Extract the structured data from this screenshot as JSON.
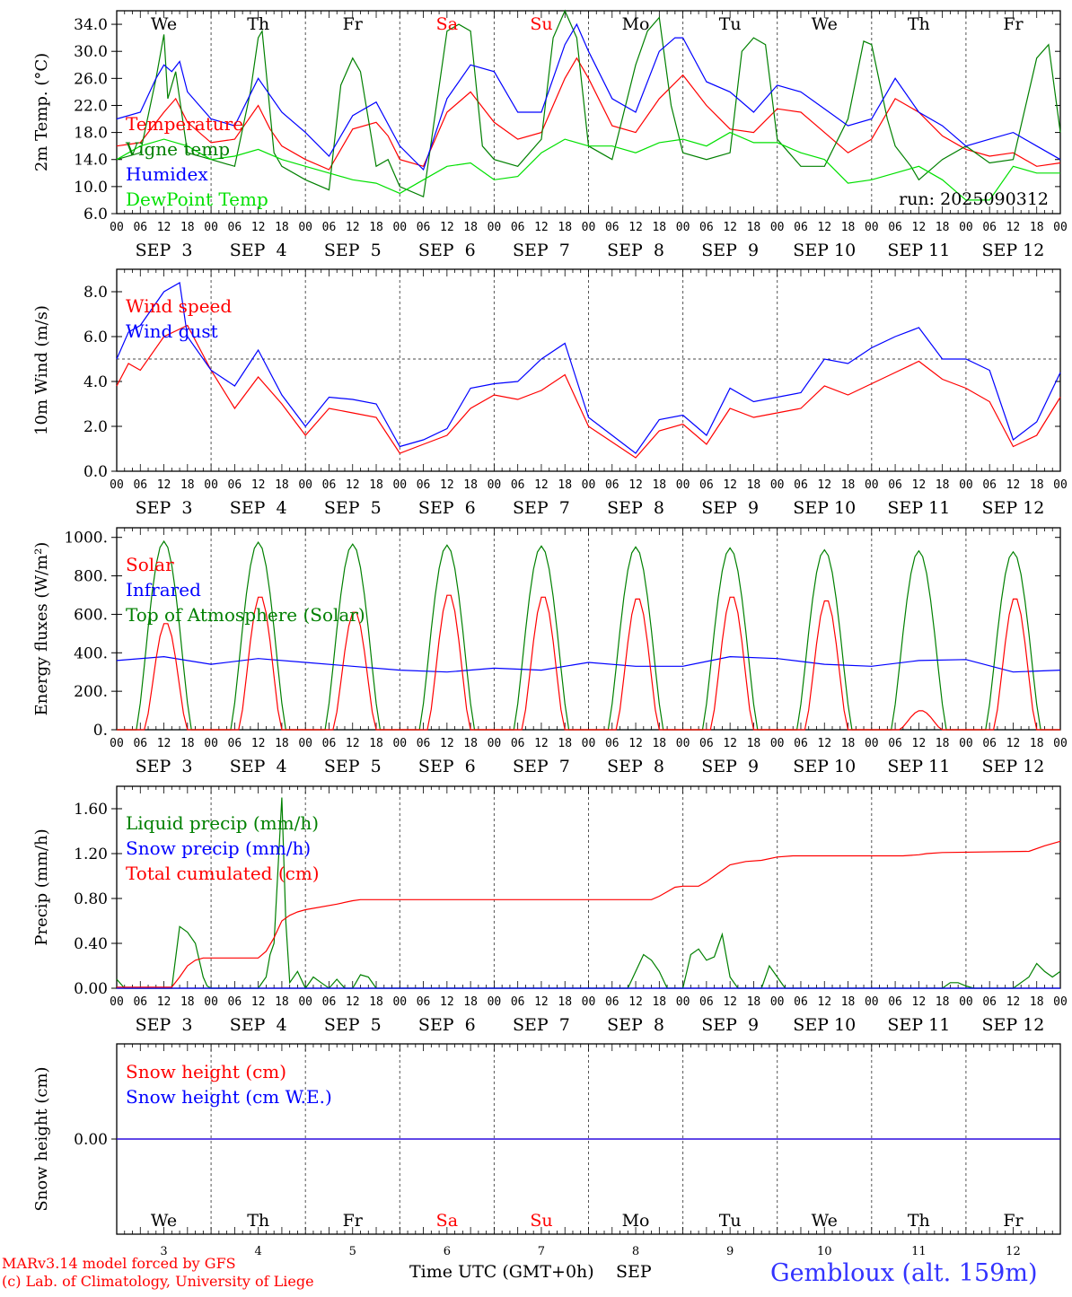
{
  "days": [
    "We",
    "Th",
    "Fr",
    "Sa",
    "Su",
    "Mo",
    "Tu",
    "We",
    "Th",
    "Fr"
  ],
  "weekend_days": [
    3,
    4
  ],
  "dates": [
    "SEP  3",
    "SEP  4",
    "SEP  5",
    "SEP  6",
    "SEP  7",
    "SEP  8",
    "SEP  9",
    "SEP 10",
    "SEP 11",
    "SEP 12"
  ],
  "date_numbers": [
    "3",
    "4",
    "5",
    "6",
    "7",
    "8",
    "9",
    "10",
    "11",
    "12"
  ],
  "hour_ticks": [
    "00",
    "06",
    "12",
    "18"
  ],
  "hour_end": "00",
  "run_label": "run: 2025090312",
  "footer": {
    "model": "MARv3.14 model forced by GFS",
    "lab": "(c) Lab. of Climatology, University of Liege",
    "xlabel": "Time UTC (GMT+0h)",
    "month": "SEP",
    "station": "Gembloux (alt. 159m)"
  },
  "colors": {
    "red": "#ff0000",
    "green": "#008000",
    "blue": "#0000ff",
    "lightgreen": "#00e000",
    "footer_blue": "#3333ff"
  },
  "chart_data": [
    {
      "id": "temperature",
      "type": "line",
      "ylabel": "2m Temp. (°C)",
      "ylim": [
        6,
        36
      ],
      "yticks": [
        6,
        10,
        14,
        18,
        22,
        26,
        30,
        34
      ],
      "ytick_labels": [
        "6.0",
        "10.0",
        "14.0",
        "18.0",
        "22.0",
        "26.0",
        "30.0",
        "34.0"
      ],
      "xlim_hours": [
        0,
        240
      ],
      "series": [
        {
          "name": "Temperature",
          "color": "red",
          "x": [
            0,
            6,
            12,
            15,
            18,
            24,
            30,
            36,
            39,
            42,
            48,
            54,
            60,
            66,
            69,
            72,
            78,
            84,
            90,
            96,
            102,
            108,
            114,
            117,
            120,
            126,
            132,
            138,
            144,
            150,
            156,
            162,
            168,
            174,
            180,
            186,
            192,
            198,
            204,
            210,
            216,
            222,
            228,
            234,
            240
          ],
          "y": [
            16,
            16.5,
            21,
            23,
            19.5,
            16.5,
            17,
            22,
            18.5,
            16,
            14,
            12.5,
            18.5,
            19.5,
            17.5,
            14,
            13,
            21,
            24,
            19.5,
            17,
            18,
            26,
            29,
            26,
            19,
            18,
            23,
            26.5,
            22,
            18.5,
            18,
            21.5,
            21,
            18,
            15,
            17,
            23,
            21,
            17.5,
            15.5,
            14.5,
            15,
            13,
            13.5
          ]
        },
        {
          "name": "Vigne temp",
          "color": "green",
          "x": [
            0,
            6,
            10,
            12,
            13,
            15,
            18,
            24,
            30,
            34,
            36,
            37,
            40,
            42,
            48,
            54,
            57,
            60,
            62,
            66,
            69,
            72,
            78,
            84,
            87,
            90,
            93,
            96,
            102,
            108,
            111,
            114,
            117,
            120,
            126,
            132,
            135,
            138,
            141,
            144,
            150,
            156,
            159,
            162,
            165,
            168,
            171,
            174,
            180,
            186,
            190,
            192,
            196,
            198,
            202,
            204,
            210,
            216,
            222,
            228,
            234,
            237,
            240
          ],
          "y": [
            14,
            15,
            26,
            32.5,
            23,
            27,
            15,
            14,
            13,
            24,
            32,
            33,
            15,
            13,
            11,
            9.5,
            25,
            29,
            27,
            13,
            14,
            10,
            8.5,
            33,
            34,
            33,
            16,
            14,
            13,
            17,
            32,
            36,
            32,
            16,
            14,
            28,
            33,
            35,
            22,
            15,
            14,
            15,
            30,
            32,
            31,
            17,
            15,
            13,
            13,
            20,
            31.5,
            31,
            20,
            16,
            13,
            11,
            14,
            16,
            13.5,
            14,
            29,
            31,
            18
          ]
        },
        {
          "name": "Humidex",
          "color": "blue",
          "x": [
            0,
            6,
            10,
            12,
            14,
            16,
            18,
            24,
            30,
            36,
            42,
            48,
            54,
            60,
            66,
            72,
            78,
            84,
            90,
            96,
            102,
            108,
            114,
            117,
            120,
            126,
            132,
            138,
            142,
            144,
            150,
            156,
            162,
            168,
            174,
            180,
            186,
            192,
            196,
            198,
            204,
            210,
            216,
            222,
            228,
            234,
            240
          ],
          "y": [
            20,
            21,
            26,
            28,
            27,
            28.5,
            24,
            20,
            19,
            26,
            21,
            18,
            14.5,
            20.5,
            22.5,
            16,
            12.5,
            23,
            28,
            27,
            21,
            21,
            31,
            34,
            30,
            23,
            21,
            30,
            32,
            32,
            25.5,
            24,
            21,
            25,
            24,
            21.5,
            19,
            20,
            24,
            26,
            21,
            19,
            16,
            17,
            18,
            16,
            14
          ]
        },
        {
          "name": "DewPoint Temp",
          "color": "lightgreen",
          "x": [
            0,
            6,
            12,
            18,
            24,
            30,
            36,
            42,
            48,
            54,
            60,
            66,
            72,
            78,
            84,
            90,
            96,
            102,
            108,
            114,
            120,
            126,
            132,
            138,
            144,
            150,
            156,
            162,
            168,
            174,
            180,
            186,
            192,
            198,
            204,
            210,
            216,
            222,
            228,
            234,
            240
          ],
          "y": [
            14,
            16,
            17,
            16,
            14,
            14.5,
            15.5,
            14,
            13,
            12,
            11,
            10.5,
            9,
            11,
            13,
            13.5,
            11,
            11.5,
            15,
            17,
            16,
            16,
            15,
            16.5,
            17,
            16,
            18,
            16.5,
            16.5,
            15,
            14,
            10.5,
            11,
            12,
            13,
            11,
            8,
            8,
            13,
            12,
            12
          ]
        }
      ],
      "legend": [
        "Temperature",
        "Vigne temp",
        "Humidex",
        "DewPoint Temp"
      ]
    },
    {
      "id": "wind",
      "type": "line",
      "ylabel": "10m Wind (m/s)",
      "ylim": [
        0,
        9
      ],
      "yticks": [
        0,
        2,
        4,
        6,
        8
      ],
      "ytick_labels": [
        "0.0",
        "2.0",
        "4.0",
        "6.0",
        "8.0"
      ],
      "reference_line": 5,
      "series": [
        {
          "name": "Wind speed",
          "color": "red",
          "x": [
            0,
            3,
            6,
            12,
            18,
            24,
            30,
            36,
            42,
            48,
            54,
            60,
            66,
            72,
            78,
            84,
            90,
            96,
            102,
            108,
            114,
            120,
            126,
            132,
            138,
            144,
            150,
            156,
            162,
            168,
            174,
            180,
            186,
            192,
            198,
            204,
            210,
            216,
            222,
            228,
            234,
            240
          ],
          "y": [
            3.8,
            4.8,
            4.5,
            6,
            6.5,
            4.5,
            2.8,
            4.2,
            3,
            1.6,
            2.8,
            2.6,
            2.4,
            0.8,
            1.2,
            1.6,
            2.8,
            3.4,
            3.2,
            3.6,
            4.3,
            2,
            1.3,
            0.6,
            1.8,
            2.1,
            1.2,
            2.8,
            2.4,
            2.6,
            2.8,
            3.8,
            3.4,
            3.9,
            4.4,
            4.9,
            4.1,
            3.7,
            3.1,
            1.1,
            1.6,
            3.3
          ]
        },
        {
          "name": "Wind gust",
          "color": "blue",
          "x": [
            0,
            3,
            6,
            12,
            16,
            18,
            24,
            30,
            36,
            42,
            48,
            54,
            60,
            66,
            72,
            78,
            84,
            90,
            96,
            102,
            108,
            114,
            120,
            126,
            132,
            138,
            144,
            150,
            156,
            162,
            168,
            174,
            180,
            186,
            192,
            198,
            204,
            210,
            216,
            222,
            228,
            234,
            240
          ],
          "y": [
            5,
            6.2,
            6.5,
            8,
            8.4,
            6,
            4.5,
            3.8,
            5.4,
            3.4,
            2,
            3.3,
            3.2,
            3,
            1.1,
            1.4,
            1.9,
            3.7,
            3.9,
            4,
            5,
            5.7,
            2.4,
            1.6,
            0.8,
            2.3,
            2.5,
            1.6,
            3.7,
            3.1,
            3.3,
            3.5,
            5,
            4.8,
            5.5,
            6,
            6.4,
            5,
            5,
            4.5,
            1.4,
            2.2,
            4.4
          ]
        }
      ],
      "legend": [
        "Wind speed",
        "Wind gust"
      ]
    },
    {
      "id": "energy",
      "type": "line",
      "ylabel": "Energy fluxes (W/m²)",
      "ylim": [
        0,
        1050
      ],
      "yticks": [
        0,
        200,
        400,
        600,
        800,
        1000
      ],
      "ytick_labels": [
        "0.",
        "200.",
        "400.",
        "600.",
        "800.",
        "1000."
      ],
      "solar_peaks": [
        560,
        700,
        620,
        710,
        700,
        690,
        700,
        680,
        100,
        690
      ],
      "toa_peaks": [
        980,
        975,
        965,
        960,
        955,
        950,
        945,
        935,
        930,
        925
      ],
      "infrared": {
        "x": [
          0,
          12,
          24,
          36,
          48,
          60,
          72,
          84,
          96,
          108,
          120,
          132,
          144,
          156,
          168,
          180,
          192,
          204,
          216,
          228,
          240
        ],
        "y": [
          360,
          380,
          340,
          370,
          350,
          330,
          310,
          300,
          320,
          310,
          350,
          330,
          330,
          380,
          370,
          340,
          330,
          360,
          365,
          300,
          310
        ]
      },
      "series": [
        {
          "name": "Solar",
          "color": "red"
        },
        {
          "name": "Infrared",
          "color": "blue"
        },
        {
          "name": "Top of Atmosphere (Solar)",
          "color": "green"
        }
      ],
      "legend": [
        "Solar",
        "Infrared",
        "Top of Atmosphere (Solar)"
      ]
    },
    {
      "id": "precip",
      "type": "line",
      "ylabel": "Precip (mm/h)",
      "ylim": [
        0,
        1.8
      ],
      "yticks": [
        0,
        0.4,
        0.8,
        1.2,
        1.6
      ],
      "ytick_labels": [
        "0.00",
        "0.40",
        "0.80",
        "1.20",
        "1.60"
      ],
      "series": [
        {
          "name": "Liquid precip (mm/h)",
          "color": "green",
          "x": [
            0,
            2,
            4,
            14,
            16,
            18,
            20,
            22,
            23,
            24,
            36,
            38,
            39,
            40,
            42,
            43,
            44,
            46,
            48,
            50,
            52,
            54,
            56,
            58,
            60,
            62,
            64,
            66,
            68,
            70,
            72,
            130,
            134,
            136,
            138,
            140,
            144,
            146,
            148,
            150,
            152,
            154,
            156,
            158,
            160,
            162,
            164,
            166,
            168,
            170,
            200,
            210,
            212,
            214,
            216,
            218,
            228,
            232,
            234,
            236,
            238,
            240
          ],
          "y": [
            0.08,
            0,
            0,
            0,
            0.55,
            0.5,
            0.4,
            0.1,
            0.02,
            0,
            0,
            0.1,
            0.3,
            0.4,
            1.7,
            0.6,
            0.05,
            0.15,
            0,
            0.1,
            0.05,
            0,
            0.08,
            0,
            0,
            0.12,
            0.1,
            0,
            0,
            0,
            0,
            0,
            0.3,
            0.25,
            0.15,
            0,
            0,
            0.3,
            0.35,
            0.25,
            0.28,
            0.48,
            0.1,
            0,
            0,
            0,
            0,
            0.2,
            0.1,
            0,
            0,
            0,
            0.05,
            0.05,
            0.02,
            0,
            0,
            0.1,
            0.22,
            0.15,
            0.1,
            0.15
          ]
        },
        {
          "name": "Snow precip (mm/h)",
          "color": "blue",
          "x": [
            0,
            240
          ],
          "y": [
            0,
            0
          ]
        },
        {
          "name": "Total cumulated (cm)",
          "color": "red",
          "x": [
            0,
            14,
            16,
            18,
            20,
            22,
            24,
            36,
            38,
            40,
            42,
            44,
            46,
            48,
            56,
            60,
            62,
            66,
            72,
            136,
            138,
            140,
            142,
            144,
            148,
            150,
            152,
            154,
            156,
            160,
            164,
            168,
            172,
            200,
            204,
            206,
            210,
            232,
            236,
            240
          ],
          "y": [
            0.01,
            0.01,
            0.1,
            0.2,
            0.25,
            0.27,
            0.27,
            0.27,
            0.33,
            0.45,
            0.6,
            0.65,
            0.68,
            0.7,
            0.75,
            0.78,
            0.79,
            0.79,
            0.79,
            0.79,
            0.82,
            0.86,
            0.9,
            0.91,
            0.91,
            0.95,
            1,
            1.05,
            1.1,
            1.13,
            1.14,
            1.17,
            1.18,
            1.18,
            1.19,
            1.2,
            1.21,
            1.22,
            1.27,
            1.31
          ]
        }
      ],
      "legend": [
        "Liquid precip (mm/h)",
        "Snow precip (mm/h)",
        "Total cumulated (cm)"
      ]
    },
    {
      "id": "snow",
      "type": "line",
      "ylabel": "Snow height (cm)",
      "ylim": [
        -1,
        1
      ],
      "yticks": [
        0
      ],
      "ytick_labels": [
        "0.00"
      ],
      "series": [
        {
          "name": "Snow height (cm)",
          "color": "red",
          "x": [
            0,
            240
          ],
          "y": [
            0,
            0
          ]
        },
        {
          "name": "Snow height (cm W.E.)",
          "color": "blue",
          "x": [
            0,
            240
          ],
          "y": [
            0,
            0
          ]
        }
      ],
      "legend": [
        "Snow height (cm)",
        "Snow height (cm W.E.)"
      ]
    }
  ]
}
